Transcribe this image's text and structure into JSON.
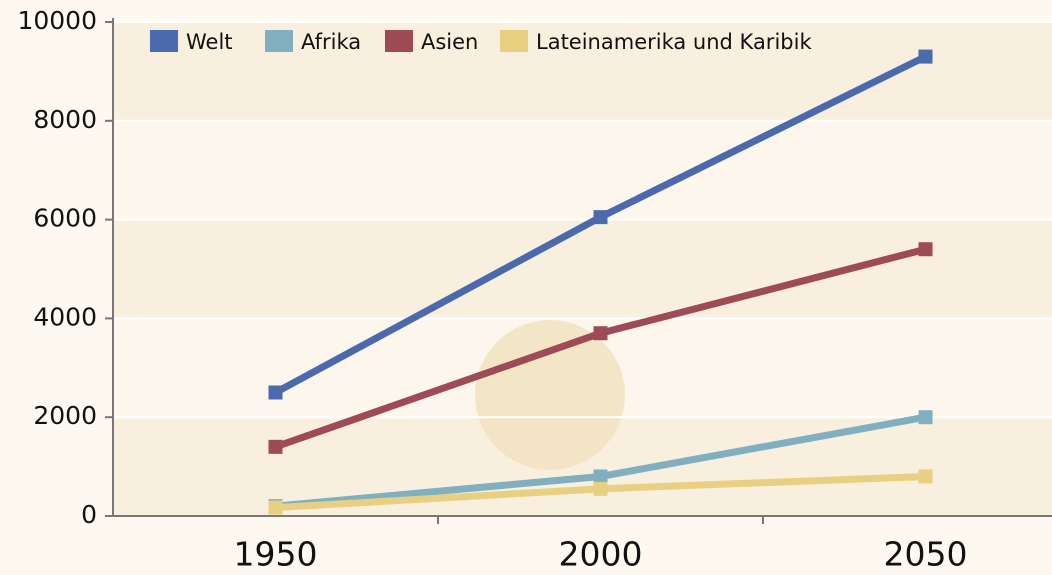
{
  "chart_data": {
    "type": "line",
    "categories": [
      "1950",
      "2000",
      "2050"
    ],
    "series": [
      {
        "name": "Welt",
        "color": "#4a6aad",
        "values": [
          2500,
          6050,
          9300
        ]
      },
      {
        "name": "Afrika",
        "color": "#80b0bf",
        "values": [
          200,
          800,
          2000
        ]
      },
      {
        "name": "Asien",
        "color": "#9e4a57",
        "values": [
          1400,
          3700,
          5400
        ]
      },
      {
        "name": "Lateinamerika und Karibik",
        "color": "#e9cf82",
        "values": [
          170,
          550,
          800
        ]
      }
    ],
    "ylim": [
      0,
      10000
    ],
    "yticks": [
      0,
      2000,
      4000,
      6000,
      8000,
      10000
    ],
    "grid": true,
    "legend": "top"
  }
}
